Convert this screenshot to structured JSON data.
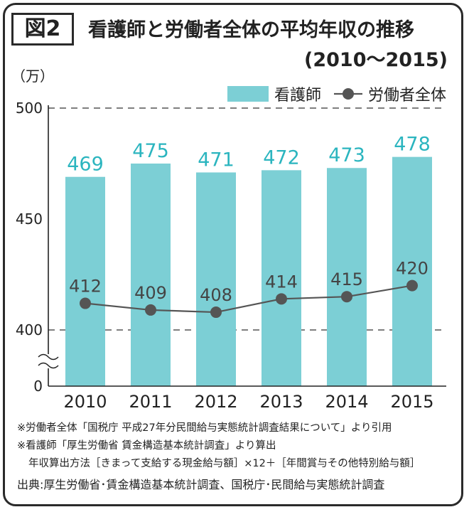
{
  "figure_label": "図2",
  "title": "看護師と労働者全体の平均年収の推移",
  "subtitle": "(2010～2015)",
  "colors": {
    "bar": "#7ccfd5",
    "bar_label": "#2bb5bf",
    "line": "#555555",
    "text": "#222222"
  },
  "chart_data": {
    "type": "bar",
    "categories": [
      "2010",
      "2011",
      "2012",
      "2013",
      "2014",
      "2015"
    ],
    "unit_label": "（万）",
    "y_ticks": [
      "500",
      "450",
      "400",
      "0"
    ],
    "axis_break": true,
    "grid": "dashed at 400 and 500",
    "legend_placement": "top-right",
    "series": [
      {
        "name": "看護師",
        "kind": "bar",
        "values": [
          469,
          475,
          471,
          472,
          473,
          478
        ]
      },
      {
        "name": "労働者全体",
        "kind": "line",
        "values": [
          412,
          409,
          408,
          414,
          415,
          420
        ]
      }
    ]
  },
  "notes": [
    "※労働者全体「国税庁 平成27年分民間給与実態統計調査結果について」より引用",
    "※看護師「厚生労働省 賃金構造基本統計調査」より算出",
    "年収算出方法［きまって支給する現金給与額］×12＋［年間賞与その他特別給与額］"
  ],
  "source": "出典:厚生労働省･賃金構造基本統計調査、国税庁･民間給与実態統計調査"
}
